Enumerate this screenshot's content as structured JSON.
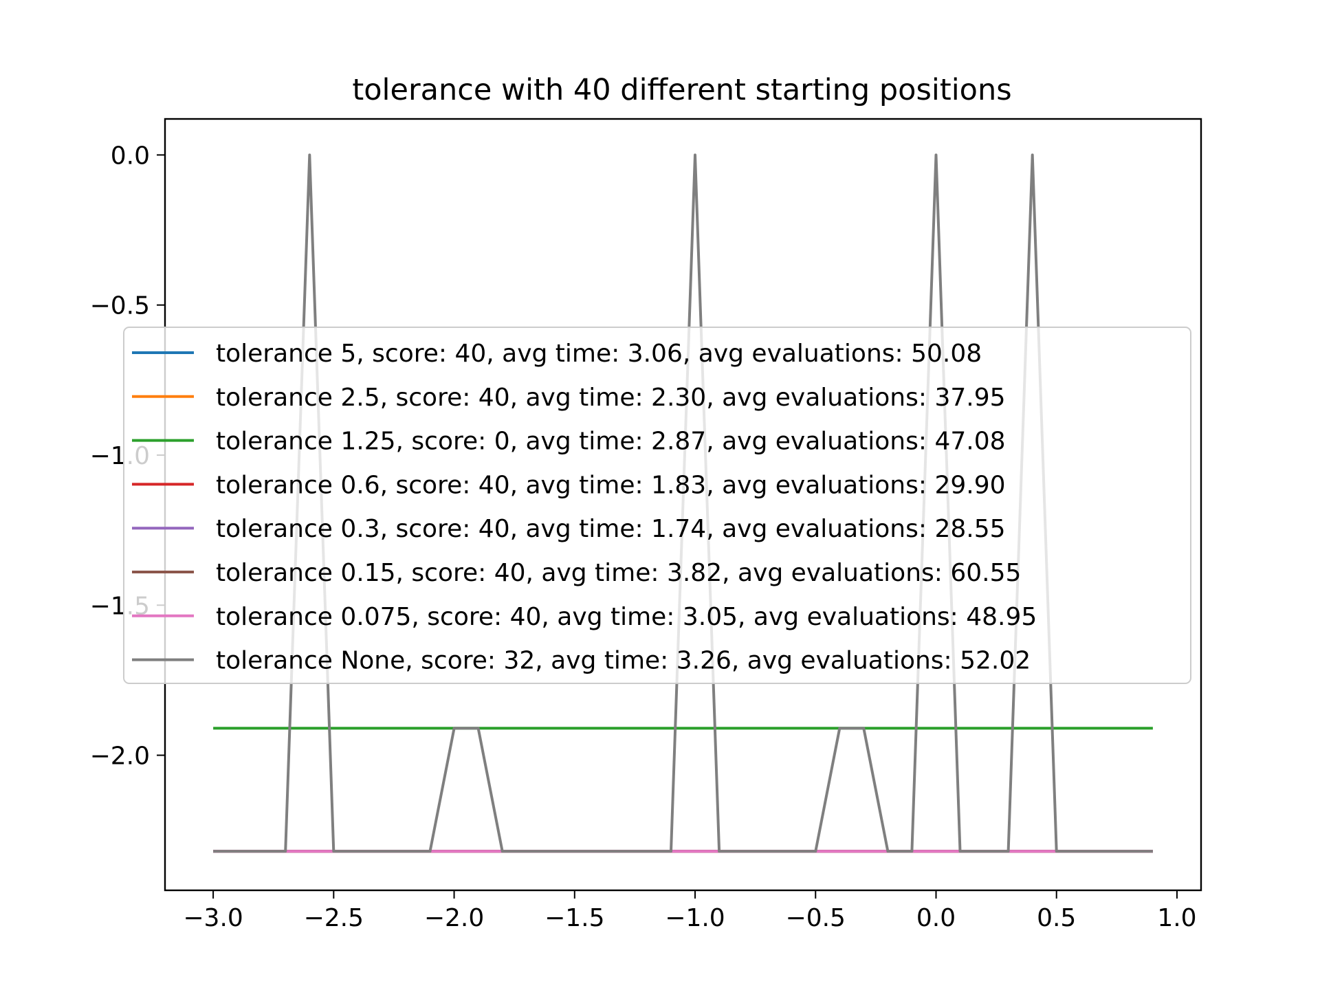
{
  "chart_data": {
    "type": "line",
    "title": "tolerance with 40 different starting positions",
    "xlabel": "",
    "ylabel": "",
    "xlim": [
      -3.2,
      1.1
    ],
    "ylim": [
      -2.45,
      0.12
    ],
    "xticks": [
      -3.0,
      -2.5,
      -2.0,
      -1.5,
      -1.0,
      -0.5,
      0.0,
      0.5,
      1.0
    ],
    "xtick_labels": [
      "−3.0",
      "−2.5",
      "−2.0",
      "−1.5",
      "−1.0",
      "−0.5",
      "0.0",
      "0.5",
      "1.0"
    ],
    "yticks": [
      0.0,
      -0.5,
      -1.0,
      -1.5,
      -2.0
    ],
    "ytick_labels": [
      "0.0",
      "−0.5",
      "−1.0",
      "−1.5",
      "−2.0"
    ],
    "grid": false,
    "legend_position": "center",
    "x": [
      -3.0,
      -2.9,
      -2.8,
      -2.7,
      -2.6,
      -2.5,
      -2.4,
      -2.3,
      -2.2,
      -2.1,
      -2.0,
      -1.9,
      -1.8,
      -1.7,
      -1.6,
      -1.5,
      -1.4,
      -1.3,
      -1.2,
      -1.1,
      -1.0,
      -0.9,
      -0.8,
      -0.7,
      -0.6,
      -0.5,
      -0.4,
      -0.3,
      -0.2,
      -0.1,
      0.0,
      0.1,
      0.2,
      0.3,
      0.4,
      0.5,
      0.6,
      0.7,
      0.8,
      0.9
    ],
    "series": [
      {
        "name": "tolerance 5, score: 40, avg time: 3.06, avg evaluations: 50.08",
        "color": "#1f77b4",
        "values": [
          -2.32,
          -2.32,
          -2.32,
          -2.32,
          -2.32,
          -2.32,
          -2.32,
          -2.32,
          -2.32,
          -2.32,
          -2.32,
          -2.32,
          -2.32,
          -2.32,
          -2.32,
          -2.32,
          -2.32,
          -2.32,
          -2.32,
          -2.32,
          -2.32,
          -2.32,
          -2.32,
          -2.32,
          -2.32,
          -2.32,
          -2.32,
          -2.32,
          -2.32,
          -2.32,
          -2.32,
          -2.32,
          -2.32,
          -2.32,
          -2.32,
          -2.32,
          -2.32,
          -2.32,
          -2.32,
          -2.32
        ]
      },
      {
        "name": "tolerance 2.5, score: 40, avg time: 2.30, avg evaluations: 37.95",
        "color": "#ff7f0e",
        "values": [
          -2.32,
          -2.32,
          -2.32,
          -2.32,
          -2.32,
          -2.32,
          -2.32,
          -2.32,
          -2.32,
          -2.32,
          -2.32,
          -2.32,
          -2.32,
          -2.32,
          -2.32,
          -2.32,
          -2.32,
          -2.32,
          -2.32,
          -2.32,
          -2.32,
          -2.32,
          -2.32,
          -2.32,
          -2.32,
          -2.32,
          -2.32,
          -2.32,
          -2.32,
          -2.32,
          -2.32,
          -2.32,
          -2.32,
          -2.32,
          -2.32,
          -2.32,
          -2.32,
          -2.32,
          -2.32,
          -2.32
        ]
      },
      {
        "name": "tolerance 1.25, score: 0, avg time: 2.87, avg evaluations: 47.08",
        "color": "#2ca02c",
        "values": [
          -1.91,
          -1.91,
          -1.91,
          -1.91,
          -1.91,
          -1.91,
          -1.91,
          -1.91,
          -1.91,
          -1.91,
          -1.91,
          -1.91,
          -1.91,
          -1.91,
          -1.91,
          -1.91,
          -1.91,
          -1.91,
          -1.91,
          -1.91,
          -1.91,
          -1.91,
          -1.91,
          -1.91,
          -1.91,
          -1.91,
          -1.91,
          -1.91,
          -1.91,
          -1.91,
          -1.91,
          -1.91,
          -1.91,
          -1.91,
          -1.91,
          -1.91,
          -1.91,
          -1.91,
          -1.91,
          -1.91
        ]
      },
      {
        "name": "tolerance 0.6, score: 40, avg time: 1.83, avg evaluations: 29.90",
        "color": "#d62728",
        "values": [
          -2.32,
          -2.32,
          -2.32,
          -2.32,
          -2.32,
          -2.32,
          -2.32,
          -2.32,
          -2.32,
          -2.32,
          -2.32,
          -2.32,
          -2.32,
          -2.32,
          -2.32,
          -2.32,
          -2.32,
          -2.32,
          -2.32,
          -2.32,
          -2.32,
          -2.32,
          -2.32,
          -2.32,
          -2.32,
          -2.32,
          -2.32,
          -2.32,
          -2.32,
          -2.32,
          -2.32,
          -2.32,
          -2.32,
          -2.32,
          -2.32,
          -2.32,
          -2.32,
          -2.32,
          -2.32,
          -2.32
        ]
      },
      {
        "name": "tolerance 0.3, score: 40, avg time: 1.74, avg evaluations: 28.55",
        "color": "#9467bd",
        "values": [
          -2.32,
          -2.32,
          -2.32,
          -2.32,
          -2.32,
          -2.32,
          -2.32,
          -2.32,
          -2.32,
          -2.32,
          -2.32,
          -2.32,
          -2.32,
          -2.32,
          -2.32,
          -2.32,
          -2.32,
          -2.32,
          -2.32,
          -2.32,
          -2.32,
          -2.32,
          -2.32,
          -2.32,
          -2.32,
          -2.32,
          -2.32,
          -2.32,
          -2.32,
          -2.32,
          -2.32,
          -2.32,
          -2.32,
          -2.32,
          -2.32,
          -2.32,
          -2.32,
          -2.32,
          -2.32,
          -2.32
        ]
      },
      {
        "name": "tolerance 0.15, score: 40, avg time: 3.82, avg evaluations: 60.55",
        "color": "#8c564b",
        "values": [
          -2.32,
          -2.32,
          -2.32,
          -2.32,
          -2.32,
          -2.32,
          -2.32,
          -2.32,
          -2.32,
          -2.32,
          -2.32,
          -2.32,
          -2.32,
          -2.32,
          -2.32,
          -2.32,
          -2.32,
          -2.32,
          -2.32,
          -2.32,
          -2.32,
          -2.32,
          -2.32,
          -2.32,
          -2.32,
          -2.32,
          -2.32,
          -2.32,
          -2.32,
          -2.32,
          -2.32,
          -2.32,
          -2.32,
          -2.32,
          -2.32,
          -2.32,
          -2.32,
          -2.32,
          -2.32,
          -2.32
        ]
      },
      {
        "name": "tolerance 0.075, score: 40, avg time: 3.05, avg evaluations: 48.95",
        "color": "#e377c2",
        "values": [
          -2.32,
          -2.32,
          -2.32,
          -2.32,
          -2.32,
          -2.32,
          -2.32,
          -2.32,
          -2.32,
          -2.32,
          -2.32,
          -2.32,
          -2.32,
          -2.32,
          -2.32,
          -2.32,
          -2.32,
          -2.32,
          -2.32,
          -2.32,
          -2.32,
          -2.32,
          -2.32,
          -2.32,
          -2.32,
          -2.32,
          -2.32,
          -2.32,
          -2.32,
          -2.32,
          -2.32,
          -2.32,
          -2.32,
          -2.32,
          -2.32,
          -2.32,
          -2.32,
          -2.32,
          -2.32,
          -2.32
        ]
      },
      {
        "name": "tolerance None, score: 32, avg time: 3.26, avg evaluations: 52.02",
        "color": "#7f7f7f",
        "values": [
          -2.32,
          -2.32,
          -2.32,
          -2.32,
          0.0,
          -2.32,
          -2.32,
          -2.32,
          -2.32,
          -2.32,
          -1.91,
          -1.91,
          -2.32,
          -2.32,
          -2.32,
          -2.32,
          -2.32,
          -2.32,
          -2.32,
          -2.32,
          0.0,
          -2.32,
          -2.32,
          -2.32,
          -2.32,
          -2.32,
          -1.91,
          -1.91,
          -2.32,
          -2.32,
          0.0,
          -2.32,
          -2.32,
          -2.32,
          0.0,
          -2.32,
          -2.32,
          -2.32,
          -2.32,
          -2.32
        ]
      }
    ]
  }
}
